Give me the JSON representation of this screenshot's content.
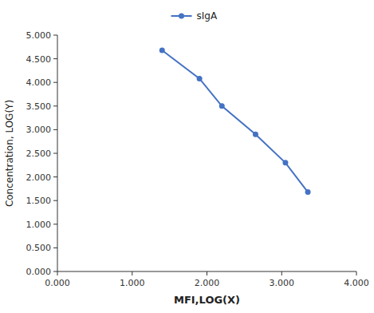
{
  "chart_data": {
    "type": "line",
    "x": [
      1.4,
      1.9,
      2.2,
      2.65,
      3.05,
      3.35
    ],
    "series": [
      {
        "name": "sIgA",
        "color": "#4472C4",
        "marker": "circle",
        "values": [
          4.68,
          4.08,
          3.5,
          2.9,
          2.3,
          1.68
        ]
      }
    ],
    "xlabel": "MFI,LOG(X)",
    "ylabel": "Concentration, LOG(Y)",
    "xlim": [
      0.0,
      4.0
    ],
    "ylim": [
      0.0,
      5.0
    ],
    "xticks": [
      {
        "value": 0.0,
        "label": "0.000"
      },
      {
        "value": 1.0,
        "label": "1.000"
      },
      {
        "value": 2.0,
        "label": "2.000"
      },
      {
        "value": 3.0,
        "label": "3.000"
      },
      {
        "value": 4.0,
        "label": "4.000"
      }
    ],
    "yticks": [
      {
        "value": 0.0,
        "label": "0.000"
      },
      {
        "value": 0.5,
        "label": "0.500"
      },
      {
        "value": 1.0,
        "label": "1.000"
      },
      {
        "value": 1.5,
        "label": "1.500"
      },
      {
        "value": 2.0,
        "label": "2.000"
      },
      {
        "value": 2.5,
        "label": "2.500"
      },
      {
        "value": 3.0,
        "label": "3.000"
      },
      {
        "value": 3.5,
        "label": "3.500"
      },
      {
        "value": 4.0,
        "label": "4.000"
      },
      {
        "value": 4.5,
        "label": "4.500"
      },
      {
        "value": 5.0,
        "label": "5.000"
      }
    ],
    "grid": false,
    "legend": "top"
  }
}
